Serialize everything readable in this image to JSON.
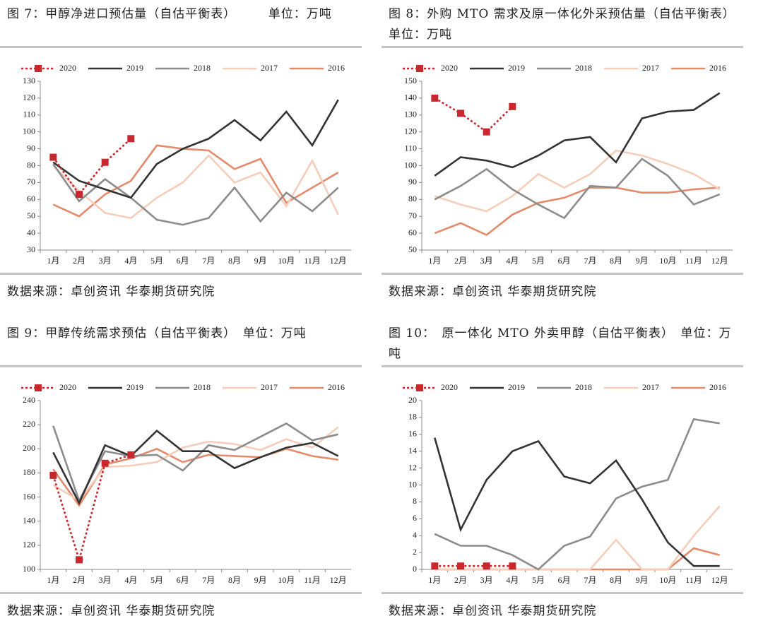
{
  "chart_data": [
    {
      "type": "line",
      "title": "图 7：甲醇净进口预估量（自估平衡表）　　　单位：万吨",
      "source": "数据来源：卓创资讯 华泰期货研究院",
      "categories": [
        "1月",
        "2月",
        "3月",
        "4月",
        "5月",
        "6月",
        "7月",
        "8月",
        "9月",
        "10月",
        "11月",
        "12月"
      ],
      "ylim": [
        30,
        130
      ],
      "yticks": [
        30,
        40,
        50,
        60,
        70,
        80,
        90,
        100,
        110,
        120,
        130
      ],
      "series": [
        {
          "name": "2020",
          "color": "#c8272d",
          "style": "dotted",
          "marker": "square",
          "values": [
            85,
            63,
            82,
            96,
            null,
            null,
            null,
            null,
            null,
            null,
            null,
            null
          ]
        },
        {
          "name": "2019",
          "color": "#333333",
          "values": [
            82,
            71,
            66,
            61,
            81,
            90,
            96,
            107,
            95,
            112,
            92,
            119
          ]
        },
        {
          "name": "2018",
          "color": "#8c8c8c",
          "values": [
            81,
            59,
            72,
            61,
            48,
            45,
            49,
            67,
            47,
            64,
            53,
            67
          ]
        },
        {
          "name": "2017",
          "color": "#f6cdb9",
          "values": [
            80,
            65,
            52,
            49,
            61,
            70,
            86,
            70,
            76,
            56,
            83,
            51
          ]
        },
        {
          "name": "2016",
          "color": "#e58a6b",
          "values": [
            57,
            50,
            63,
            71,
            92,
            90,
            89,
            78,
            84,
            58,
            67,
            76
          ]
        }
      ]
    },
    {
      "type": "line",
      "title": "图 8：外购 MTO 需求及原一体化外采预估量（自估平衡表）　　　单位：万吨",
      "source": "数据来源：卓创资讯 华泰期货研究院",
      "categories": [
        "1月",
        "2月",
        "3月",
        "4月",
        "5月",
        "6月",
        "7月",
        "8月",
        "9月",
        "10月",
        "11月",
        "12月"
      ],
      "ylim": [
        50,
        150
      ],
      "yticks": [
        50,
        60,
        70,
        80,
        90,
        100,
        110,
        120,
        130,
        140,
        150
      ],
      "series": [
        {
          "name": "2020",
          "color": "#c8272d",
          "style": "dotted",
          "marker": "square",
          "values": [
            140,
            131,
            120,
            135,
            null,
            null,
            null,
            null,
            null,
            null,
            null,
            null
          ]
        },
        {
          "name": "2019",
          "color": "#333333",
          "values": [
            94,
            105,
            103,
            99,
            106,
            115,
            117,
            102,
            128,
            132,
            133,
            143
          ]
        },
        {
          "name": "2018",
          "color": "#8c8c8c",
          "values": [
            80,
            88,
            98,
            86,
            77,
            69,
            88,
            87,
            104,
            94,
            77,
            83
          ]
        },
        {
          "name": "2017",
          "color": "#f6cdb9",
          "values": [
            82,
            77,
            73,
            82,
            95,
            87,
            95,
            109,
            106,
            101,
            95,
            86
          ]
        },
        {
          "name": "2016",
          "color": "#e58a6b",
          "values": [
            60,
            66,
            59,
            71,
            78,
            81,
            87,
            87,
            84,
            84,
            86,
            87
          ]
        }
      ]
    },
    {
      "type": "line",
      "title": "图 9：甲醇传统需求预估（自估平衡表）　单位：万吨",
      "source": "数据来源：卓创资讯 华泰期货研究院",
      "categories": [
        "1月",
        "2月",
        "3月",
        "4月",
        "5月",
        "6月",
        "7月",
        "8月",
        "9月",
        "10月",
        "11月",
        "12月"
      ],
      "ylim": [
        100,
        240
      ],
      "yticks": [
        100,
        120,
        140,
        160,
        180,
        200,
        220,
        240
      ],
      "series": [
        {
          "name": "2020",
          "color": "#c8272d",
          "style": "dotted",
          "marker": "square",
          "values": [
            178,
            108,
            188,
            195,
            null,
            null,
            null,
            null,
            null,
            null,
            null,
            null
          ]
        },
        {
          "name": "2019",
          "color": "#333333",
          "values": [
            197,
            155,
            203,
            194,
            215,
            198,
            198,
            184,
            193,
            201,
            205,
            194
          ]
        },
        {
          "name": "2018",
          "color": "#8c8c8c",
          "values": [
            219,
            157,
            198,
            194,
            195,
            182,
            203,
            199,
            210,
            221,
            207,
            212
          ]
        },
        {
          "name": "2017",
          "color": "#f6cdb9",
          "values": [
            170,
            157,
            185,
            186,
            189,
            201,
            206,
            204,
            199,
            208,
            201,
            218
          ]
        },
        {
          "name": "2016",
          "color": "#e58a6b",
          "values": [
            183,
            153,
            187,
            192,
            200,
            189,
            195,
            194,
            193,
            200,
            194,
            191
          ]
        }
      ]
    },
    {
      "type": "line",
      "title": "图 10：　原一体化 MTO 外卖甲醇（自估平衡表）　单位：万吨",
      "source": "数据来源：卓创资讯 华泰期货研究院",
      "categories": [
        "1月",
        "2月",
        "3月",
        "4月",
        "5月",
        "6月",
        "7月",
        "8月",
        "9月",
        "10月",
        "11月",
        "12月"
      ],
      "ylim": [
        0,
        20
      ],
      "yticks": [
        0,
        2,
        4,
        6,
        8,
        10,
        12,
        14,
        16,
        18,
        20
      ],
      "series": [
        {
          "name": "2020",
          "color": "#c8272d",
          "style": "dotted",
          "marker": "square",
          "values": [
            0.4,
            0.4,
            0.4,
            0.4,
            null,
            null,
            null,
            null,
            null,
            null,
            null,
            null
          ]
        },
        {
          "name": "2019",
          "color": "#333333",
          "values": [
            15.6,
            4.7,
            10.6,
            14,
            15.2,
            11,
            10.2,
            12.9,
            8.3,
            3.2,
            0.4,
            0.4
          ]
        },
        {
          "name": "2018",
          "color": "#8c8c8c",
          "values": [
            4.2,
            2.8,
            2.8,
            1.7,
            0,
            2.8,
            3.9,
            8.4,
            9.8,
            10.6,
            17.8,
            17.3
          ]
        },
        {
          "name": "2017",
          "color": "#f6cdb9",
          "values": [
            0,
            0,
            0,
            0,
            0,
            0,
            0,
            3.5,
            0,
            0,
            4,
            7.5
          ]
        },
        {
          "name": "2016",
          "color": "#e58a6b",
          "values": [
            0,
            0,
            0,
            0,
            0,
            0,
            0,
            0,
            0,
            0,
            2.5,
            1.7
          ]
        }
      ]
    }
  ]
}
